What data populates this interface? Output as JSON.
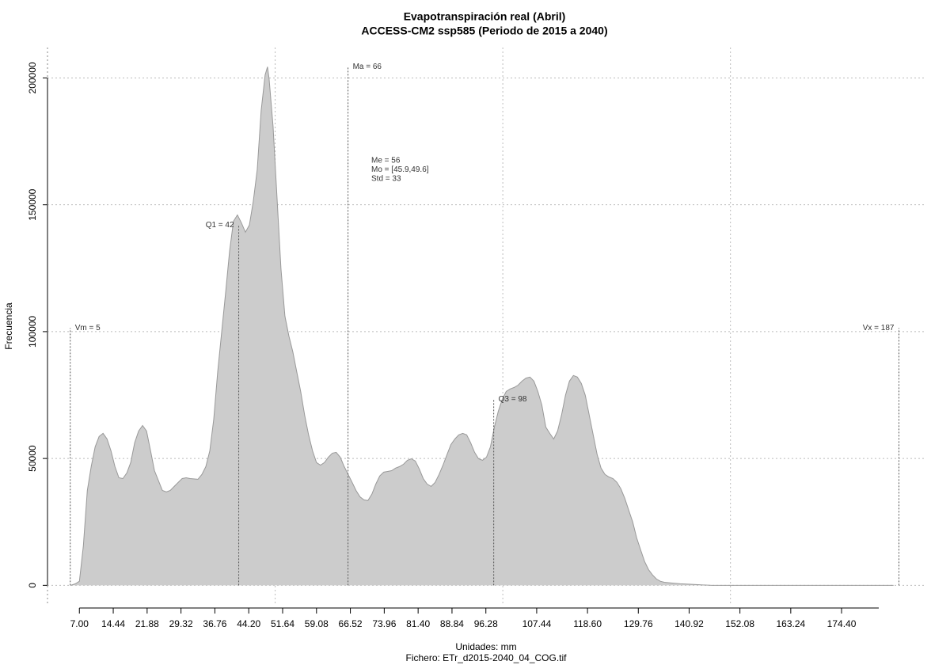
{
  "chart_data": {
    "type": "area",
    "title": "Evapotranspiración real (Abril)",
    "subtitle": "ACCESS-CM2 ssp585 (Periodo de 2015 a 2040)",
    "ylabel": "Frecuencia",
    "xlabel": "Unidades: mm",
    "caption": "Fichero: ETr_d2015-2040_04_COG.tif",
    "color": "#cccccc",
    "xlim": [
      0,
      193
    ],
    "ylim": [
      -8000,
      212000
    ],
    "yticks": [
      0,
      50000,
      100000,
      150000,
      200000
    ],
    "xticks": [
      {
        "value": 7.0,
        "label": "7.00"
      },
      14.44,
      21.88,
      29.32,
      36.76,
      {
        "value": 44.2,
        "label": "44.20"
      },
      51.64,
      59.08,
      66.52,
      73.96,
      {
        "value": 81.4,
        "label": "81.40"
      },
      88.84,
      96.28,
      107.44,
      {
        "value": 118.6,
        "label": "118.60"
      },
      129.76,
      140.92,
      152.08,
      163.24,
      {
        "value": 174.4,
        "label": "174.40"
      }
    ],
    "grid": true,
    "xgrid": [
      50,
      100,
      150
    ],
    "annotations": [
      {
        "x": 5,
        "y": 101400,
        "label": "Vm = 5"
      },
      {
        "x": 42,
        "y": 142000,
        "label": "Q1 = 42"
      },
      {
        "x": 66,
        "y": 204400,
        "label": "Ma = 66"
      },
      {
        "x": 98,
        "y": 73300,
        "label": "Q3 = 98"
      },
      {
        "x": 187,
        "y": 101400,
        "label": "Vx = 187"
      }
    ],
    "stats": [
      "Me = 56",
      "Mo = [45.9,49.6]",
      "Std = 33"
    ],
    "x": [
      5.09,
      6.13,
      7.0,
      7.87,
      8.74,
      9.6,
      10.47,
      11.34,
      12.21,
      13.08,
      13.94,
      14.81,
      15.68,
      16.55,
      17.42,
      18.28,
      19.15,
      20.02,
      20.89,
      21.76,
      22.63,
      23.49,
      25.23,
      26.1,
      26.97,
      27.83,
      28.7,
      29.57,
      30.44,
      31.31,
      33.04,
      33.91,
      34.78,
      35.65,
      36.51,
      37.38,
      38.25,
      39.12,
      39.99,
      40.85,
      41.72,
      42.59,
      43.46,
      44.33,
      45.19,
      46.06,
      46.93,
      47.8,
      48.32,
      48.67,
      49.53,
      50.4,
      51.27,
      52.14,
      53.01,
      53.88,
      54.74,
      55.61,
      56.48,
      57.35,
      58.22,
      59.08,
      59.95,
      60.82,
      61.69,
      62.56,
      63.42,
      64.29,
      65.16,
      66.03,
      66.9,
      67.76,
      68.63,
      69.5,
      70.37,
      71.24,
      72.1,
      72.97,
      73.84,
      74.71,
      75.58,
      76.44,
      77.31,
      78.18,
      79.05,
      79.92,
      80.78,
      81.65,
      82.52,
      83.39,
      84.26,
      85.13,
      85.99,
      86.86,
      87.73,
      88.6,
      89.47,
      90.33,
      91.2,
      92.07,
      92.94,
      93.81,
      94.67,
      95.54,
      96.41,
      97.28,
      98.15,
      99.01,
      99.88,
      100.75,
      101.62,
      102.49,
      103.35,
      104.22,
      105.09,
      105.96,
      106.83,
      107.69,
      108.56,
      109.43,
      110.3,
      111.17,
      112.03,
      112.9,
      113.77,
      114.64,
      115.51,
      116.38,
      117.24,
      118.11,
      118.98,
      119.85,
      120.72,
      121.58,
      122.45,
      123.32,
      124.19,
      125.06,
      125.92,
      126.79,
      127.66,
      128.53,
      129.4,
      130.26,
      131.13,
      132.0,
      132.87,
      133.74,
      134.6,
      135.47,
      137.21,
      138.94,
      142.42,
      145.89,
      185.82
    ],
    "values": [
      0,
      600,
      1600,
      15600,
      37400,
      46800,
      54600,
      58700,
      59900,
      57700,
      53000,
      46800,
      42400,
      42100,
      44300,
      48400,
      56200,
      60800,
      63000,
      60800,
      53000,
      45200,
      37400,
      36800,
      37400,
      39000,
      40600,
      42100,
      42400,
      42100,
      41800,
      43700,
      46800,
      53000,
      65500,
      84200,
      99800,
      115400,
      131700,
      143500,
      146000,
      142900,
      139200,
      142000,
      151300,
      163800,
      187200,
      201200,
      204400,
      199700,
      181000,
      152900,
      124800,
      106100,
      98300,
      92000,
      84200,
      76400,
      67100,
      59300,
      53000,
      48400,
      47400,
      48400,
      50500,
      52100,
      52400,
      50500,
      46800,
      43700,
      40600,
      37400,
      34900,
      33700,
      33400,
      35900,
      39900,
      43100,
      44600,
      44900,
      45200,
      46200,
      46800,
      47700,
      49300,
      49900,
      49000,
      45900,
      42100,
      39900,
      39000,
      40600,
      43700,
      47400,
      51500,
      55500,
      57700,
      59300,
      59900,
      59300,
      56200,
      52400,
      49900,
      49300,
      50500,
      54600,
      62400,
      68600,
      73300,
      76400,
      77400,
      78000,
      78900,
      80500,
      81700,
      82100,
      80500,
      76400,
      71100,
      62400,
      59900,
      57700,
      60800,
      67100,
      74900,
      80500,
      82700,
      82100,
      79600,
      74900,
      67100,
      59300,
      51500,
      46200,
      43700,
      42700,
      42100,
      40600,
      38100,
      34300,
      29600,
      25000,
      18700,
      14000,
      9400,
      6200,
      4100,
      2500,
      1600,
      1200,
      900,
      600,
      300,
      0,
      0
    ]
  }
}
